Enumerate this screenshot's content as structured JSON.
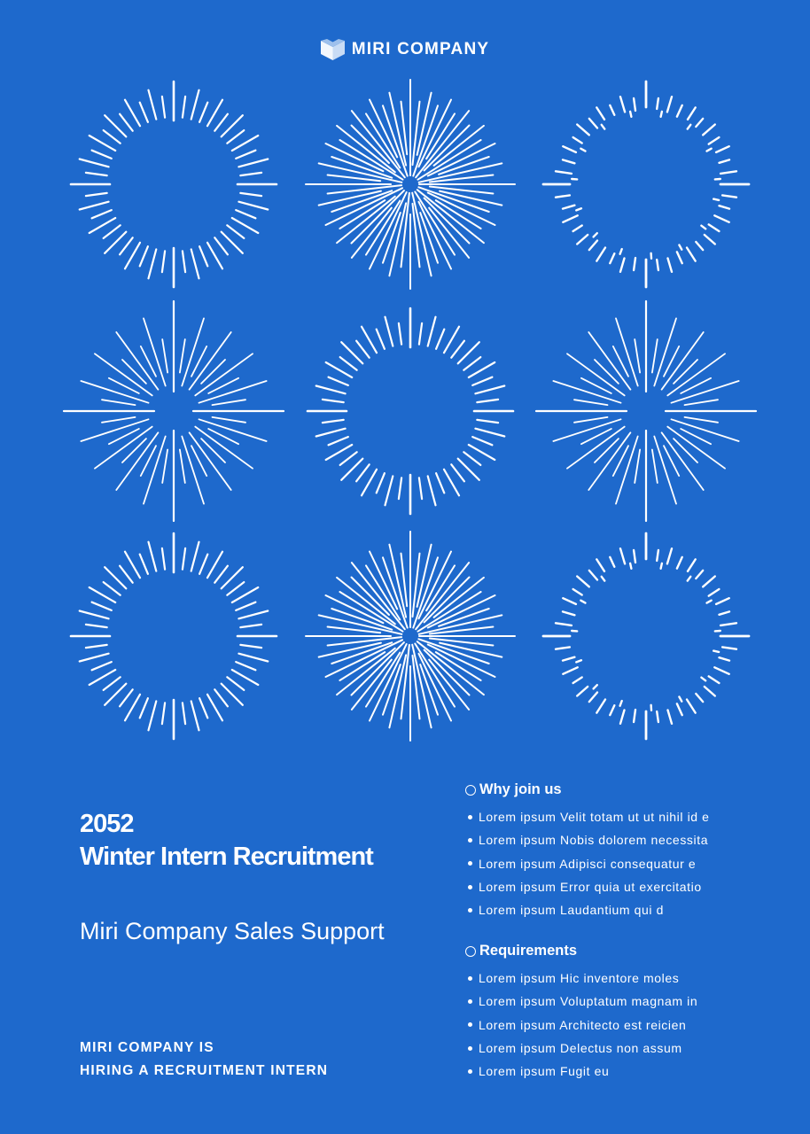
{
  "brand": {
    "name": "MIRI COMPANY",
    "logo_icon": "folded-ribbon-logo"
  },
  "decoration": {
    "pattern": "sunburst-grid",
    "rows": 3,
    "columns": 3,
    "stroke_color": "#ffffff",
    "background_color": "#1e69cc"
  },
  "headline": {
    "year": "2052",
    "title": "Winter Intern Recruitment"
  },
  "subtitle": "Miri Company Sales Support",
  "hiring": {
    "line1": "MIRI COMPANY IS",
    "line2": "HIRING A RECRUITMENT INTERN"
  },
  "why_join": {
    "title": "Why join us",
    "items": [
      "Lorem ipsum Velit totam ut ut nihil id e",
      "Lorem ipsum Nobis dolorem necessita",
      "Lorem ipsum Adipisci consequatur e",
      "Lorem ipsum Error quia ut exercitatio",
      "Lorem ipsum Laudantium qui d"
    ]
  },
  "requirements": {
    "title": "Requirements",
    "items": [
      "Lorem ipsum Hic inventore moles",
      "Lorem ipsum Voluptatum magnam in",
      "Lorem ipsum Architecto est reicien",
      "Lorem ipsum Delectus non assum",
      "Lorem ipsum Fugit eu"
    ]
  }
}
